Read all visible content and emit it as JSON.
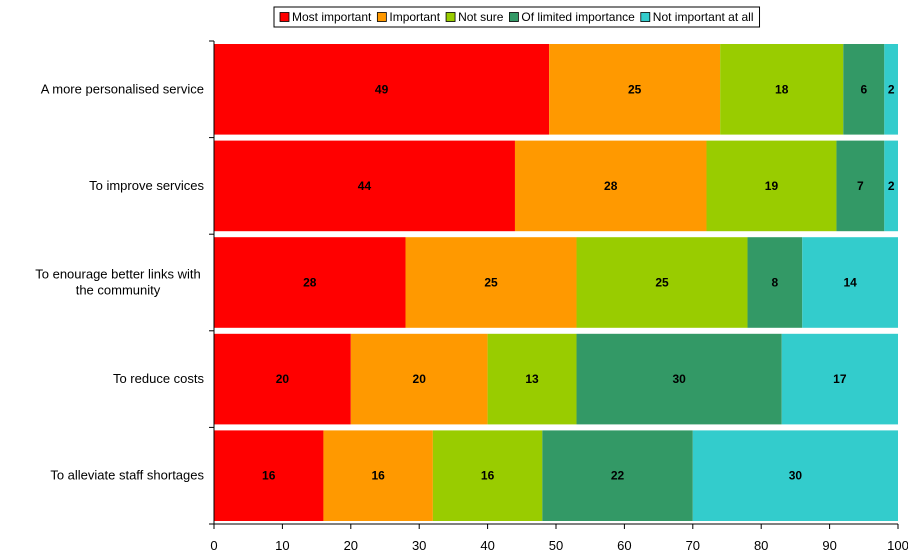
{
  "chart_data": {
    "type": "bar",
    "orientation": "horizontal",
    "stacked": true,
    "categories": [
      "A more personalised service",
      "To improve services",
      "To enourage better links with the community",
      "To reduce costs",
      "To alleviate staff shortages"
    ],
    "category_lines": [
      [
        "A more personalised service"
      ],
      [
        "To improve services"
      ],
      [
        "To enourage better links with",
        "the community"
      ],
      [
        "To reduce costs"
      ],
      [
        "To alleviate staff shortages"
      ]
    ],
    "series": [
      {
        "name": "Most important",
        "color": "#ff0000",
        "values": [
          49,
          44,
          28,
          20,
          16
        ],
        "labels": [
          "49",
          "44",
          "28",
          "20",
          "16"
        ]
      },
      {
        "name": "Important",
        "color": "#ff9900",
        "values": [
          25,
          28,
          25,
          20,
          16
        ],
        "labels": [
          "25",
          "28",
          "25",
          "20",
          "16"
        ]
      },
      {
        "name": "Not sure",
        "color": "#99cc00",
        "values": [
          18,
          19,
          25,
          13,
          16
        ],
        "labels": [
          "18",
          "19",
          "25",
          "13",
          "16"
        ]
      },
      {
        "name": "Of limited importance",
        "color": "#339966",
        "values": [
          6,
          7,
          8,
          30,
          22
        ],
        "labels": [
          "6",
          "7",
          "8",
          "30",
          "22"
        ]
      },
      {
        "name": "Not important at all",
        "color": "#33cccc",
        "values": [
          2,
          2,
          14,
          17,
          30
        ],
        "labels": [
          "2",
          "2",
          "14",
          "17",
          "30"
        ]
      }
    ],
    "xlim": [
      0,
      100
    ],
    "xticks": [
      0,
      10,
      20,
      30,
      40,
      50,
      60,
      70,
      80,
      90,
      100
    ],
    "xtick_labels": [
      "0",
      "10",
      "20",
      "30",
      "40",
      "50",
      "60",
      "70",
      "80",
      "90",
      "100"
    ],
    "grid": false,
    "legend_position": "top"
  }
}
